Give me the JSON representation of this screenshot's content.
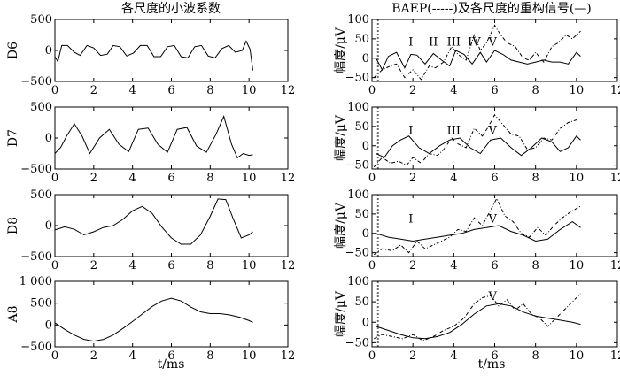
{
  "titles": {
    "left": "各尺度的小波系数",
    "right": "BAEP(-----)及各尺度的重构信号(—)"
  },
  "xlabel": "t/ms",
  "chart_data": [
    {
      "type": "line",
      "panel": "left",
      "ylabel": "D6",
      "xlim": [
        0,
        12
      ],
      "ylim": [
        -500,
        500
      ],
      "xticks": [
        0,
        2,
        4,
        6,
        8,
        10,
        12
      ],
      "yticks": [
        -500,
        0,
        500
      ],
      "ytick_labels": [
        "−500",
        "0",
        "500"
      ],
      "series": [
        {
          "style": "solid",
          "x": [
            0,
            0.15,
            0.35,
            0.65,
            1.0,
            1.3,
            1.65,
            2.0,
            2.35,
            2.7,
            3.0,
            3.35,
            3.7,
            4.05,
            4.4,
            4.75,
            5.1,
            5.45,
            5.8,
            6.15,
            6.5,
            6.85,
            7.2,
            7.55,
            7.9,
            8.25,
            8.6,
            8.95,
            9.3,
            9.65,
            9.85,
            10.05,
            10.2
          ],
          "y": [
            -100,
            -180,
            80,
            80,
            -30,
            -80,
            80,
            40,
            -80,
            -60,
            80,
            60,
            -90,
            -40,
            80,
            80,
            -100,
            -100,
            60,
            80,
            -100,
            -120,
            60,
            80,
            -90,
            -120,
            30,
            80,
            -30,
            0,
            150,
            20,
            -320
          ]
        }
      ]
    },
    {
      "type": "line",
      "panel": "left",
      "ylabel": "D7",
      "xlim": [
        0,
        12
      ],
      "ylim": [
        -500,
        500
      ],
      "xticks": [
        0,
        2,
        4,
        6,
        8,
        10,
        12
      ],
      "yticks": [
        -500,
        0,
        500
      ],
      "ytick_labels": [
        "−500",
        "0",
        "500"
      ],
      "series": [
        {
          "style": "solid",
          "x": [
            0,
            0.3,
            0.6,
            1.0,
            1.4,
            1.8,
            2.3,
            2.8,
            3.3,
            3.8,
            4.3,
            4.8,
            5.3,
            5.8,
            6.3,
            6.8,
            7.3,
            7.8,
            8.3,
            8.7,
            9.1,
            9.4,
            9.7,
            10.0,
            10.2
          ],
          "y": [
            -250,
            -150,
            30,
            230,
            30,
            -250,
            0,
            140,
            -100,
            -220,
            140,
            160,
            -100,
            -230,
            140,
            170,
            -130,
            -230,
            60,
            350,
            -100,
            -320,
            -250,
            -280,
            -270
          ]
        }
      ]
    },
    {
      "type": "line",
      "panel": "left",
      "ylabel": "D8",
      "xlim": [
        0,
        12
      ],
      "ylim": [
        -500,
        500
      ],
      "xticks": [
        0,
        2,
        4,
        6,
        8,
        10,
        12
      ],
      "yticks": [
        -500,
        0,
        500
      ],
      "ytick_labels": [
        "−500",
        "0",
        "500"
      ],
      "series": [
        {
          "style": "solid",
          "x": [
            0,
            0.5,
            1.0,
            1.5,
            2.0,
            2.5,
            3.0,
            3.5,
            4.0,
            4.5,
            5.0,
            5.5,
            6.0,
            6.5,
            7.0,
            7.5,
            8.0,
            8.4,
            8.8,
            9.2,
            9.6,
            10.0,
            10.2
          ],
          "y": [
            -70,
            -20,
            -60,
            -150,
            -100,
            -30,
            0,
            100,
            240,
            310,
            200,
            -20,
            -200,
            -300,
            -300,
            -150,
            150,
            430,
            420,
            100,
            -200,
            -150,
            -100
          ]
        }
      ]
    },
    {
      "type": "line",
      "panel": "left",
      "ylabel": "A8",
      "xlim": [
        0,
        12
      ],
      "ylim": [
        -500,
        1000
      ],
      "xticks": [
        0,
        2,
        4,
        6,
        8,
        10,
        12
      ],
      "yticks": [
        -500,
        0,
        500,
        1000
      ],
      "ytick_labels": [
        "−500",
        "0",
        "500",
        "1 000"
      ],
      "series": [
        {
          "style": "solid",
          "x": [
            0,
            0.5,
            1.0,
            1.5,
            2.0,
            2.5,
            3.0,
            3.5,
            4.0,
            4.5,
            5.0,
            5.5,
            6.0,
            6.5,
            7.0,
            7.5,
            8.0,
            8.5,
            9.0,
            9.5,
            10.0,
            10.2
          ],
          "y": [
            50,
            -100,
            -230,
            -330,
            -370,
            -330,
            -230,
            -80,
            80,
            250,
            420,
            550,
            610,
            550,
            410,
            300,
            260,
            260,
            230,
            180,
            100,
            60
          ]
        }
      ]
    },
    {
      "type": "line",
      "panel": "right",
      "ylabel": "幅度/μV",
      "xlim": [
        0,
        12
      ],
      "ylim": [
        -60,
        100
      ],
      "xticks": [
        0,
        2,
        4,
        6,
        8,
        10,
        12
      ],
      "yticks": [
        -50,
        0,
        50,
        100
      ],
      "ytick_labels": [
        "−50",
        "0",
        "50",
        "100"
      ],
      "series": [
        {
          "style": "solid",
          "x": [
            0.2,
            0.5,
            0.8,
            1.2,
            1.6,
            1.9,
            2.2,
            2.6,
            3.0,
            3.4,
            3.8,
            4.1,
            4.5,
            4.9,
            5.3,
            5.6,
            6.0,
            6.4,
            6.8,
            7.2,
            7.6,
            8.0,
            8.4,
            8.8,
            9.2,
            9.6,
            10.0,
            10.2
          ],
          "y": [
            0,
            -30,
            5,
            15,
            -25,
            10,
            8,
            -15,
            12,
            -5,
            -20,
            20,
            10,
            -15,
            15,
            -10,
            20,
            10,
            -5,
            -10,
            -15,
            -10,
            -5,
            -10,
            -10,
            -15,
            15,
            5
          ]
        },
        {
          "style": "dashed",
          "x": [
            0.1,
            0.5,
            0.9,
            1.2,
            1.6,
            2.0,
            2.4,
            2.8,
            3.1,
            3.5,
            3.9,
            4.2,
            4.6,
            5.0,
            5.3,
            5.6,
            6.0,
            6.3,
            6.6,
            7.0,
            7.4,
            7.7,
            8.0,
            8.4,
            8.8,
            9.1,
            9.5,
            9.8,
            10.2
          ],
          "y": [
            -50,
            -30,
            -20,
            -15,
            -50,
            -30,
            -55,
            -20,
            -25,
            -10,
            30,
            10,
            -5,
            60,
            20,
            40,
            85,
            60,
            40,
            30,
            0,
            -5,
            15,
            -10,
            30,
            40,
            60,
            50,
            70
          ]
        }
      ],
      "annotations": [
        {
          "text": "I",
          "x": 1.9,
          "y": 33
        },
        {
          "text": "II",
          "x": 3.0,
          "y": 33
        },
        {
          "text": "III",
          "x": 4.0,
          "y": 33
        },
        {
          "text": "IV",
          "x": 5.0,
          "y": 33
        },
        {
          "text": "V",
          "x": 5.9,
          "y": 33
        }
      ]
    },
    {
      "type": "line",
      "panel": "right",
      "ylabel": "幅度/μV",
      "xlim": [
        0,
        12
      ],
      "ylim": [
        -60,
        100
      ],
      "xticks": [
        0,
        2,
        4,
        6,
        8,
        10,
        12
      ],
      "yticks": [
        -50,
        0,
        50,
        100
      ],
      "ytick_labels": [
        "−50",
        "0",
        "50",
        "100"
      ],
      "series": [
        {
          "style": "solid",
          "x": [
            0.2,
            0.6,
            1.0,
            1.4,
            1.8,
            2.3,
            2.8,
            3.3,
            3.8,
            4.3,
            4.8,
            5.3,
            5.8,
            6.3,
            6.8,
            7.3,
            7.8,
            8.3,
            8.8,
            9.2,
            9.6,
            10.0,
            10.2
          ],
          "y": [
            -20,
            -30,
            0,
            15,
            25,
            -5,
            -20,
            0,
            15,
            20,
            -5,
            -20,
            15,
            20,
            -5,
            -25,
            -5,
            20,
            10,
            -15,
            -5,
            25,
            15
          ]
        },
        {
          "style": "dashed",
          "x": [
            0.1,
            0.5,
            0.9,
            1.3,
            1.7,
            2.0,
            2.4,
            2.8,
            3.2,
            3.5,
            3.9,
            4.2,
            4.6,
            5.0,
            5.4,
            5.7,
            6.0,
            6.4,
            6.8,
            7.2,
            7.6,
            8.0,
            8.4,
            8.8,
            9.2,
            9.6,
            10.2
          ],
          "y": [
            -55,
            -30,
            -45,
            -40,
            -50,
            -30,
            -45,
            -20,
            -25,
            -10,
            20,
            5,
            -5,
            45,
            25,
            50,
            80,
            55,
            30,
            25,
            -10,
            -5,
            20,
            15,
            45,
            60,
            70
          ]
        }
      ],
      "annotations": [
        {
          "text": "I",
          "x": 1.9,
          "y": 30
        },
        {
          "text": "III",
          "x": 4.0,
          "y": 30
        },
        {
          "text": "V",
          "x": 5.9,
          "y": 30
        }
      ]
    },
    {
      "type": "line",
      "panel": "right",
      "ylabel": "幅度/μV",
      "xlim": [
        0,
        12
      ],
      "ylim": [
        -60,
        100
      ],
      "xticks": [
        0,
        2,
        4,
        6,
        8,
        10,
        12
      ],
      "yticks": [
        -50,
        0,
        50,
        100
      ],
      "ytick_labels": [
        "−50",
        "0",
        "50",
        "100"
      ],
      "series": [
        {
          "style": "solid",
          "x": [
            0.2,
            0.8,
            1.4,
            2.0,
            2.6,
            3.2,
            3.8,
            4.4,
            5.0,
            5.6,
            6.2,
            6.8,
            7.4,
            8.0,
            8.6,
            9.2,
            9.8,
            10.2
          ],
          "y": [
            0,
            -10,
            -15,
            -20,
            -15,
            -10,
            -5,
            0,
            10,
            15,
            20,
            5,
            -5,
            -20,
            -15,
            10,
            30,
            15
          ]
        },
        {
          "style": "dashed",
          "x": [
            0.1,
            0.5,
            1.0,
            1.4,
            1.8,
            2.2,
            2.6,
            3.0,
            3.4,
            3.8,
            4.2,
            4.6,
            5.0,
            5.4,
            5.8,
            6.1,
            6.5,
            6.9,
            7.3,
            7.7,
            8.1,
            8.5,
            8.9,
            9.3,
            9.7,
            10.2
          ],
          "y": [
            -55,
            -40,
            -45,
            -30,
            -50,
            -20,
            -40,
            -30,
            -20,
            -10,
            10,
            5,
            40,
            20,
            60,
            90,
            45,
            30,
            0,
            -10,
            15,
            -5,
            20,
            40,
            55,
            70
          ]
        }
      ],
      "annotations": [
        {
          "text": "I",
          "x": 1.9,
          "y": 28
        },
        {
          "text": "V",
          "x": 5.9,
          "y": 28
        }
      ]
    },
    {
      "type": "line",
      "panel": "right",
      "ylabel": "幅度/μV",
      "xlim": [
        0,
        12
      ],
      "ylim": [
        -60,
        100
      ],
      "xticks": [
        0,
        2,
        4,
        6,
        8,
        10,
        12
      ],
      "yticks": [
        -50,
        0,
        50,
        100
      ],
      "ytick_labels": [
        "−50",
        "0",
        "50",
        "100"
      ],
      "series": [
        {
          "style": "solid",
          "x": [
            0.2,
            0.8,
            1.4,
            2.0,
            2.6,
            3.2,
            3.8,
            4.4,
            5.0,
            5.6,
            6.2,
            6.8,
            7.4,
            8.0,
            8.6,
            9.2,
            9.8,
            10.2
          ],
          "y": [
            -10,
            -20,
            -30,
            -38,
            -40,
            -35,
            -25,
            -5,
            20,
            40,
            45,
            40,
            25,
            15,
            10,
            5,
            0,
            -5
          ]
        },
        {
          "style": "dashed",
          "x": [
            0.1,
            0.5,
            1.0,
            1.5,
            2.0,
            2.5,
            3.0,
            3.5,
            4.0,
            4.5,
            5.0,
            5.4,
            5.8,
            6.2,
            6.6,
            7.0,
            7.4,
            7.8,
            8.2,
            8.6,
            9.0,
            9.4,
            9.8,
            10.2
          ],
          "y": [
            -40,
            -30,
            -35,
            -40,
            -30,
            -45,
            -35,
            -20,
            -10,
            10,
            45,
            60,
            65,
            40,
            55,
            30,
            45,
            20,
            10,
            -10,
            10,
            30,
            50,
            70
          ]
        }
      ],
      "annotations": [
        {
          "text": "V",
          "x": 5.9,
          "y": 55
        }
      ]
    }
  ]
}
